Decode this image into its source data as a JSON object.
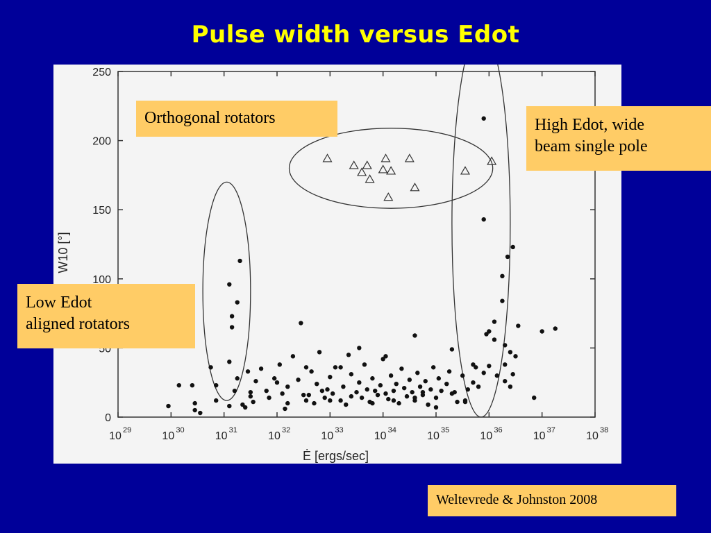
{
  "title": "Pulse width versus Edot",
  "callouts": {
    "orthogonal": "Orthogonal rotators",
    "high_edot": [
      "High Edot, wide",
      "beam single pole"
    ],
    "low_edot": [
      "Low Edot",
      "aligned rotators"
    ]
  },
  "citation": "Weltevrede & Johnston 2008",
  "colors": {
    "background": "#000099",
    "title": "#ffff00",
    "callout": "#ffcc66",
    "panel": "#f4f4f4",
    "points": "#111111"
  },
  "chart_data": {
    "type": "scatter",
    "title": "",
    "xlabel": "Ė [ergs/sec]",
    "ylabel": "W10 [°]",
    "xscale": "log",
    "xlim": [
      29,
      38
    ],
    "ylim": [
      0,
      250
    ],
    "xticks": [
      {
        "base": "10",
        "exp": "29"
      },
      {
        "base": "10",
        "exp": "30"
      },
      {
        "base": "10",
        "exp": "31"
      },
      {
        "base": "10",
        "exp": "32"
      },
      {
        "base": "10",
        "exp": "33"
      },
      {
        "base": "10",
        "exp": "34"
      },
      {
        "base": "10",
        "exp": "35"
      },
      {
        "base": "10",
        "exp": "36"
      },
      {
        "base": "10",
        "exp": "37"
      },
      {
        "base": "10",
        "exp": "38"
      }
    ],
    "yticks": [
      "0",
      "50",
      "100",
      "150",
      "200",
      "250"
    ],
    "series": [
      {
        "marker": "dot",
        "points": [
          [
            29.95,
            8
          ],
          [
            30.15,
            23
          ],
          [
            30.4,
            23
          ],
          [
            30.45,
            5
          ],
          [
            30.55,
            3
          ],
          [
            30.75,
            36
          ],
          [
            30.85,
            23
          ],
          [
            31.1,
            40
          ],
          [
            31.2,
            19
          ],
          [
            31.25,
            28
          ],
          [
            31.35,
            9
          ],
          [
            31.4,
            7
          ],
          [
            31.45,
            33
          ],
          [
            31.5,
            18
          ],
          [
            31.55,
            11
          ],
          [
            31.6,
            26
          ],
          [
            31.7,
            35
          ],
          [
            31.85,
            14
          ],
          [
            31.95,
            28
          ],
          [
            32.1,
            17
          ],
          [
            32.15,
            6
          ],
          [
            32.2,
            22
          ],
          [
            32.3,
            44
          ],
          [
            32.4,
            27
          ],
          [
            32.5,
            16
          ],
          [
            32.55,
            12
          ],
          [
            32.65,
            33
          ],
          [
            32.7,
            10
          ],
          [
            32.75,
            24
          ],
          [
            32.8,
            47
          ],
          [
            32.85,
            19
          ],
          [
            32.9,
            14
          ],
          [
            33.0,
            29
          ],
          [
            33.05,
            17
          ],
          [
            33.1,
            36
          ],
          [
            33.2,
            12
          ],
          [
            33.25,
            22
          ],
          [
            33.3,
            9
          ],
          [
            33.35,
            45
          ],
          [
            33.4,
            31
          ],
          [
            33.5,
            18
          ],
          [
            33.55,
            25
          ],
          [
            33.6,
            14
          ],
          [
            33.65,
            38
          ],
          [
            33.7,
            20
          ],
          [
            33.75,
            11
          ],
          [
            33.8,
            28
          ],
          [
            33.9,
            16
          ],
          [
            33.95,
            23
          ],
          [
            34.0,
            42
          ],
          [
            34.05,
            17
          ],
          [
            34.1,
            13
          ],
          [
            34.15,
            30
          ],
          [
            34.2,
            19
          ],
          [
            34.25,
            24
          ],
          [
            34.3,
            10
          ],
          [
            34.35,
            35
          ],
          [
            34.4,
            21
          ],
          [
            34.45,
            15
          ],
          [
            34.5,
            27
          ],
          [
            34.55,
            18
          ],
          [
            34.6,
            12
          ],
          [
            34.65,
            32
          ],
          [
            34.7,
            22
          ],
          [
            34.75,
            16
          ],
          [
            34.8,
            26
          ],
          [
            34.85,
            9
          ],
          [
            34.9,
            20
          ],
          [
            34.95,
            36
          ],
          [
            35.0,
            14
          ],
          [
            35.05,
            28
          ],
          [
            35.1,
            19
          ],
          [
            35.2,
            24
          ],
          [
            35.25,
            33
          ],
          [
            35.3,
            17
          ],
          [
            35.4,
            11
          ],
          [
            35.5,
            30
          ],
          [
            35.6,
            20
          ],
          [
            35.7,
            38
          ],
          [
            35.8,
            22
          ],
          [
            34.05,
            44
          ],
          [
            32.05,
            38
          ],
          [
            32.55,
            36
          ],
          [
            33.2,
            36
          ],
          [
            35.3,
            49
          ],
          [
            32.45,
            68
          ],
          [
            33.55,
            50
          ],
          [
            34.6,
            59
          ],
          [
            35.95,
            60
          ],
          [
            30.45,
            10
          ],
          [
            30.85,
            12
          ],
          [
            31.1,
            8
          ],
          [
            31.5,
            15
          ],
          [
            31.8,
            19
          ],
          [
            32.2,
            10
          ],
          [
            32.6,
            16
          ],
          [
            33.0,
            12
          ],
          [
            33.4,
            15
          ],
          [
            33.8,
            10
          ],
          [
            34.2,
            12
          ],
          [
            34.6,
            14
          ],
          [
            35.0,
            7
          ],
          [
            35.35,
            18
          ],
          [
            35.55,
            12
          ],
          [
            32.0,
            25
          ],
          [
            32.95,
            20
          ],
          [
            33.85,
            19
          ],
          [
            34.75,
            18
          ],
          [
            31.3,
            113
          ],
          [
            31.1,
            96
          ],
          [
            31.25,
            83
          ],
          [
            31.15,
            73
          ],
          [
            31.15,
            65
          ],
          [
            35.9,
            216
          ],
          [
            35.9,
            143
          ],
          [
            36.45,
            123
          ],
          [
            36.35,
            116
          ],
          [
            36.25,
            102
          ],
          [
            36.25,
            84
          ],
          [
            36.1,
            69
          ],
          [
            36.0,
            62
          ],
          [
            36.55,
            66
          ],
          [
            36.1,
            56
          ],
          [
            36.3,
            52
          ],
          [
            36.4,
            47
          ],
          [
            36.5,
            44
          ],
          [
            36.3,
            38
          ],
          [
            36.45,
            31
          ],
          [
            36.3,
            26
          ],
          [
            36.4,
            22
          ],
          [
            35.9,
            32
          ],
          [
            36.15,
            30
          ],
          [
            35.7,
            25
          ],
          [
            36.0,
            37
          ],
          [
            36.85,
            14
          ],
          [
            37.0,
            62
          ],
          [
            37.25,
            64
          ],
          [
            35.55,
            11
          ],
          [
            35.75,
            36
          ]
        ]
      },
      {
        "marker": "triangle",
        "points": [
          [
            32.95,
            187
          ],
          [
            33.45,
            182
          ],
          [
            33.6,
            177
          ],
          [
            33.7,
            182
          ],
          [
            33.75,
            172
          ],
          [
            34.05,
            187
          ],
          [
            34.0,
            179
          ],
          [
            34.15,
            178
          ],
          [
            34.1,
            159
          ],
          [
            34.5,
            187
          ],
          [
            34.6,
            166
          ],
          [
            35.55,
            178
          ],
          [
            36.05,
            185
          ]
        ]
      }
    ],
    "groups": [
      {
        "name": "Orthogonal rotators",
        "center": [
          34.15,
          180
        ],
        "rx": 1.92,
        "ry": 29
      },
      {
        "name": "High Edot, wide beam single pole",
        "center": [
          35.85,
          140
        ],
        "rx": 0.55,
        "ry": 140
      },
      {
        "name": "Low Edot aligned rotators",
        "center": [
          31.05,
          91
        ],
        "rx": 0.45,
        "ry": 79
      }
    ]
  }
}
